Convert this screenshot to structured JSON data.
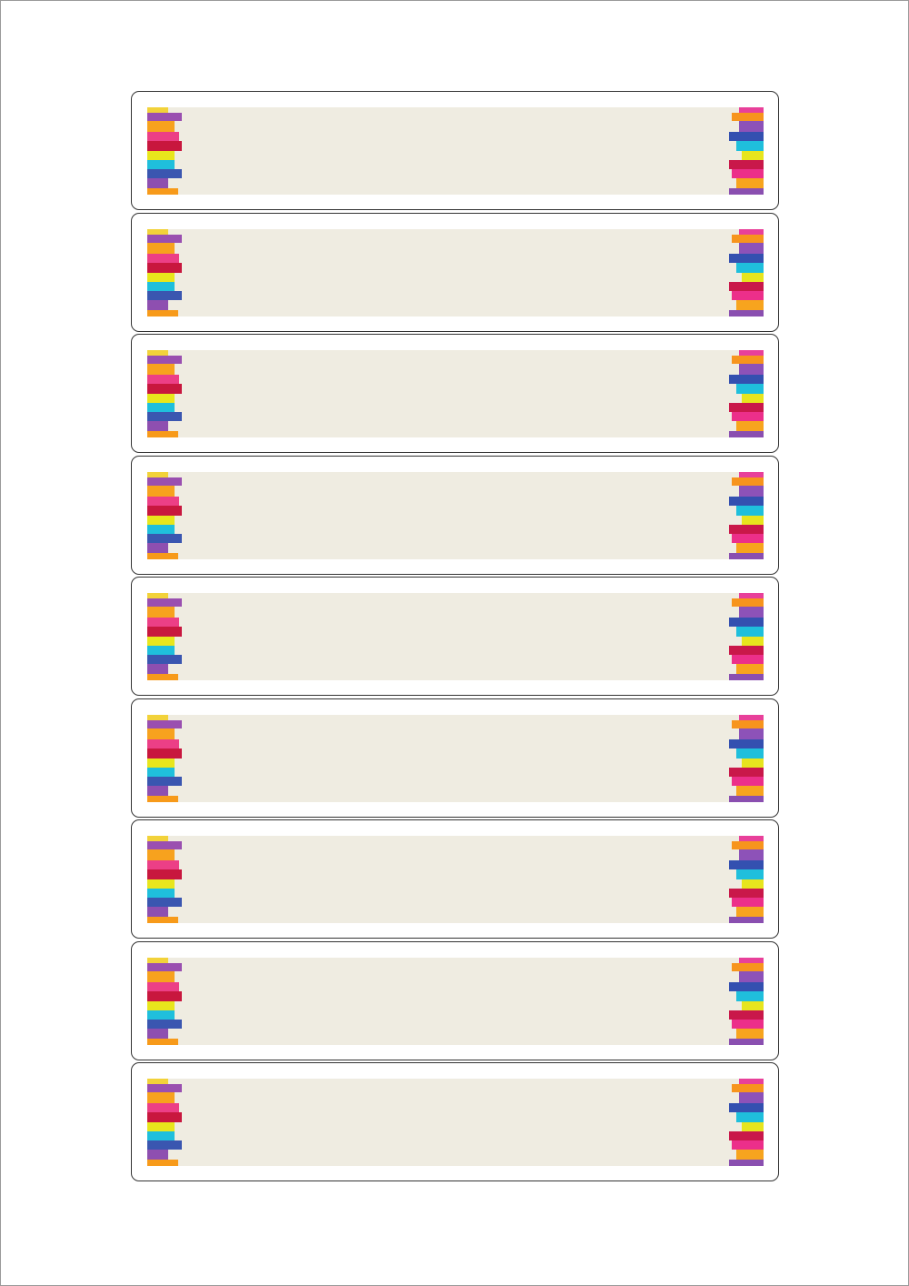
{
  "sheet": {
    "label_count": 9,
    "colors": {
      "band": "#efece1",
      "border": "#333333"
    },
    "left_strip": [
      {
        "color": "#f2d23a"
      },
      {
        "color": "#9a4fb0"
      },
      {
        "color": "#f7a21e"
      },
      {
        "color": "#ec3f86"
      },
      {
        "color": "#c8173e"
      },
      {
        "color": "#e8e61c"
      },
      {
        "color": "#1fbfdc"
      },
      {
        "color": "#3a56b0"
      },
      {
        "color": "#8e4fb0"
      },
      {
        "color": "#f79a1a"
      }
    ],
    "right_strip": [
      {
        "color": "#e8409a"
      },
      {
        "color": "#f7941d"
      },
      {
        "color": "#8d52b8"
      },
      {
        "color": "#3450b0"
      },
      {
        "color": "#1fbfdc"
      },
      {
        "color": "#e7e51e"
      },
      {
        "color": "#c9184a"
      },
      {
        "color": "#ec2f8a"
      },
      {
        "color": "#f7a41e"
      },
      {
        "color": "#8a4fb0"
      }
    ]
  }
}
